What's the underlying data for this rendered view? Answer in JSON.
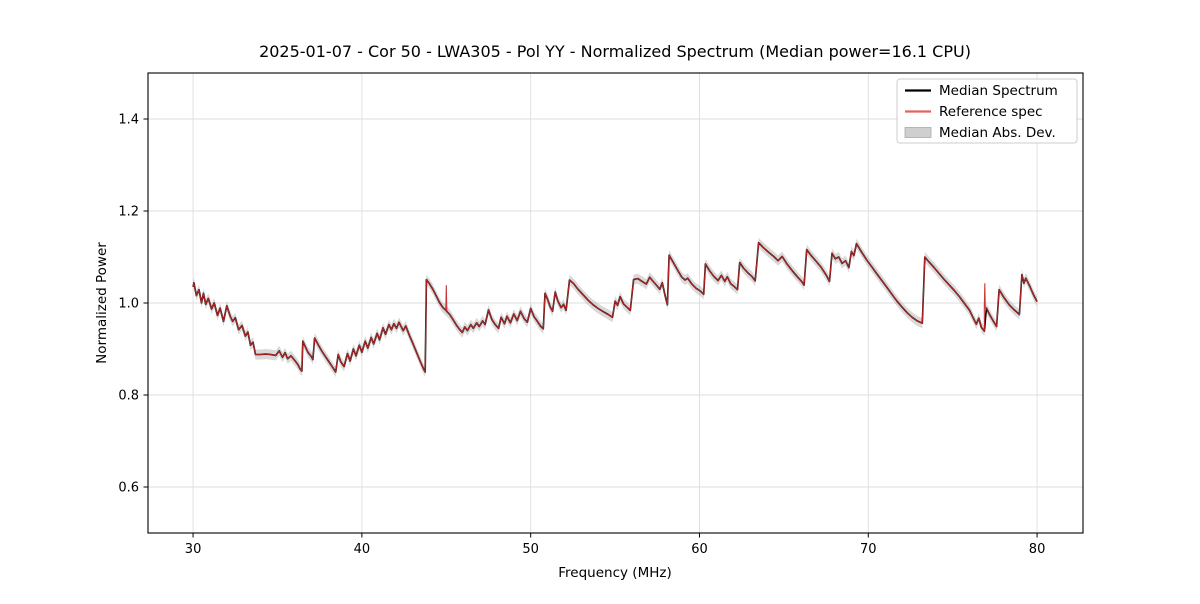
{
  "chart_data": {
    "type": "line",
    "title": "2025-01-07 - Cor 50 - LWA305 - Pol YY - Normalized Spectrum (Median power=16.1 CPU)",
    "xlabel": "Frequency (MHz)",
    "ylabel": "Normalized Power",
    "xlim": [
      27.33,
      82.72
    ],
    "ylim": [
      0.5,
      1.5
    ],
    "xticks": [
      30,
      40,
      50,
      60,
      70,
      80
    ],
    "xticklabels": [
      "30",
      "40",
      "50",
      "60",
      "70",
      "80"
    ],
    "yticks": [
      0.6,
      0.8,
      1.0,
      1.2,
      1.4
    ],
    "yticklabels": [
      "0.6",
      "0.8",
      "1.0",
      "1.2",
      "1.4"
    ],
    "grid": true,
    "colors": {
      "median_line": "#000000",
      "reference_line": "#c62828",
      "reference_legend": "#e86060",
      "mad_band": "#aaaaaa",
      "mad_band_opacity": 0.45,
      "grid_line": "#dedede",
      "frame": "#000000",
      "legend_border": "#cccccc"
    },
    "legend": {
      "position": "upper right",
      "entries": [
        {
          "label": "Median Spectrum",
          "type": "line",
          "color": "#000000"
        },
        {
          "label": "Reference spec",
          "type": "line",
          "color": "#e86060"
        },
        {
          "label": "Median Abs. Dev.",
          "type": "patch",
          "color": "#cfcfcf",
          "edge": "#aaaaaa"
        }
      ]
    },
    "series": [
      {
        "name": "Median Spectrum",
        "points": [
          [
            30.0,
            1.035
          ],
          [
            30.05,
            1.044
          ],
          [
            30.2,
            1.016
          ],
          [
            30.35,
            1.029
          ],
          [
            30.5,
            1.0
          ],
          [
            30.62,
            1.021
          ],
          [
            30.75,
            0.997
          ],
          [
            30.9,
            1.01
          ],
          [
            31.1,
            0.987
          ],
          [
            31.25,
            1.0
          ],
          [
            31.45,
            0.973
          ],
          [
            31.6,
            0.989
          ],
          [
            31.8,
            0.96
          ],
          [
            32.0,
            0.994
          ],
          [
            32.2,
            0.971
          ],
          [
            32.35,
            0.96
          ],
          [
            32.5,
            0.968
          ],
          [
            32.7,
            0.942
          ],
          [
            32.9,
            0.951
          ],
          [
            33.1,
            0.928
          ],
          [
            33.25,
            0.937
          ],
          [
            33.4,
            0.908
          ],
          [
            33.55,
            0.915
          ],
          [
            33.7,
            0.888
          ],
          [
            34.0,
            0.888
          ],
          [
            34.3,
            0.889
          ],
          [
            34.6,
            0.888
          ],
          [
            34.9,
            0.886
          ],
          [
            35.1,
            0.896
          ],
          [
            35.3,
            0.882
          ],
          [
            35.45,
            0.892
          ],
          [
            35.6,
            0.879
          ],
          [
            35.8,
            0.885
          ],
          [
            36.0,
            0.876
          ],
          [
            36.2,
            0.867
          ],
          [
            36.35,
            0.856
          ],
          [
            36.45,
            0.852
          ],
          [
            36.5,
            0.917
          ],
          [
            36.65,
            0.905
          ],
          [
            36.8,
            0.893
          ],
          [
            37.0,
            0.884
          ],
          [
            37.1,
            0.877
          ],
          [
            37.2,
            0.924
          ],
          [
            37.4,
            0.91
          ],
          [
            37.6,
            0.897
          ],
          [
            37.8,
            0.886
          ],
          [
            38.0,
            0.875
          ],
          [
            38.2,
            0.864
          ],
          [
            38.45,
            0.85
          ],
          [
            38.6,
            0.888
          ],
          [
            38.75,
            0.872
          ],
          [
            38.95,
            0.862
          ],
          [
            39.15,
            0.89
          ],
          [
            39.3,
            0.874
          ],
          [
            39.5,
            0.9
          ],
          [
            39.65,
            0.885
          ],
          [
            39.85,
            0.908
          ],
          [
            40.0,
            0.893
          ],
          [
            40.2,
            0.917
          ],
          [
            40.35,
            0.902
          ],
          [
            40.55,
            0.925
          ],
          [
            40.7,
            0.911
          ],
          [
            40.9,
            0.934
          ],
          [
            41.05,
            0.92
          ],
          [
            41.25,
            0.946
          ],
          [
            41.4,
            0.932
          ],
          [
            41.6,
            0.953
          ],
          [
            41.75,
            0.942
          ],
          [
            41.9,
            0.955
          ],
          [
            42.05,
            0.945
          ],
          [
            42.2,
            0.958
          ],
          [
            42.45,
            0.94
          ],
          [
            42.6,
            0.95
          ],
          [
            42.8,
            0.931
          ],
          [
            43.0,
            0.914
          ],
          [
            43.2,
            0.896
          ],
          [
            43.45,
            0.874
          ],
          [
            43.65,
            0.857
          ],
          [
            43.75,
            0.85
          ],
          [
            43.82,
            1.051
          ],
          [
            44.0,
            1.042
          ],
          [
            44.2,
            1.03
          ],
          [
            44.4,
            1.016
          ],
          [
            44.6,
            1.001
          ],
          [
            44.8,
            0.99
          ],
          [
            45.0,
            0.983
          ],
          [
            45.2,
            0.975
          ],
          [
            45.4,
            0.964
          ],
          [
            45.6,
            0.952
          ],
          [
            45.8,
            0.942
          ],
          [
            45.95,
            0.936
          ],
          [
            46.1,
            0.948
          ],
          [
            46.25,
            0.94
          ],
          [
            46.45,
            0.953
          ],
          [
            46.6,
            0.945
          ],
          [
            46.8,
            0.957
          ],
          [
            46.95,
            0.949
          ],
          [
            47.15,
            0.961
          ],
          [
            47.3,
            0.953
          ],
          [
            47.5,
            0.985
          ],
          [
            47.7,
            0.964
          ],
          [
            47.9,
            0.953
          ],
          [
            48.1,
            0.945
          ],
          [
            48.25,
            0.969
          ],
          [
            48.45,
            0.955
          ],
          [
            48.6,
            0.971
          ],
          [
            48.8,
            0.957
          ],
          [
            49.0,
            0.976
          ],
          [
            49.2,
            0.962
          ],
          [
            49.4,
            0.982
          ],
          [
            49.6,
            0.967
          ],
          [
            49.8,
            0.958
          ],
          [
            50.0,
            0.988
          ],
          [
            50.2,
            0.97
          ],
          [
            50.4,
            0.96
          ],
          [
            50.6,
            0.949
          ],
          [
            50.75,
            0.944
          ],
          [
            50.85,
            1.021
          ],
          [
            51.0,
            1.008
          ],
          [
            51.15,
            0.992
          ],
          [
            51.3,
            0.982
          ],
          [
            51.45,
            1.024
          ],
          [
            51.6,
            1.005
          ],
          [
            51.8,
            0.99
          ],
          [
            51.95,
            0.997
          ],
          [
            52.1,
            0.984
          ],
          [
            52.3,
            1.05
          ],
          [
            52.55,
            1.042
          ],
          [
            52.8,
            1.03
          ],
          [
            53.1,
            1.018
          ],
          [
            53.4,
            1.006
          ],
          [
            53.7,
            0.996
          ],
          [
            54.0,
            0.988
          ],
          [
            54.3,
            0.981
          ],
          [
            54.6,
            0.975
          ],
          [
            54.85,
            0.969
          ],
          [
            55.0,
            1.004
          ],
          [
            55.15,
            0.995
          ],
          [
            55.3,
            1.014
          ],
          [
            55.5,
            0.998
          ],
          [
            55.7,
            0.991
          ],
          [
            55.9,
            0.984
          ],
          [
            56.1,
            1.051
          ],
          [
            56.35,
            1.053
          ],
          [
            56.6,
            1.047
          ],
          [
            56.85,
            1.041
          ],
          [
            57.05,
            1.056
          ],
          [
            57.25,
            1.047
          ],
          [
            57.45,
            1.039
          ],
          [
            57.65,
            1.03
          ],
          [
            57.8,
            1.044
          ],
          [
            57.95,
            1.018
          ],
          [
            58.1,
            0.996
          ],
          [
            58.2,
            1.104
          ],
          [
            58.45,
            1.088
          ],
          [
            58.7,
            1.072
          ],
          [
            58.95,
            1.056
          ],
          [
            59.15,
            1.05
          ],
          [
            59.3,
            1.054
          ],
          [
            59.55,
            1.041
          ],
          [
            59.8,
            1.032
          ],
          [
            60.05,
            1.026
          ],
          [
            60.25,
            1.019
          ],
          [
            60.35,
            1.085
          ],
          [
            60.6,
            1.07
          ],
          [
            60.85,
            1.058
          ],
          [
            61.1,
            1.049
          ],
          [
            61.3,
            1.06
          ],
          [
            61.5,
            1.047
          ],
          [
            61.65,
            1.057
          ],
          [
            61.85,
            1.042
          ],
          [
            62.05,
            1.036
          ],
          [
            62.25,
            1.029
          ],
          [
            62.38,
            1.088
          ],
          [
            62.6,
            1.076
          ],
          [
            62.85,
            1.066
          ],
          [
            63.1,
            1.058
          ],
          [
            63.3,
            1.048
          ],
          [
            63.5,
            1.131
          ],
          [
            63.8,
            1.12
          ],
          [
            64.1,
            1.11
          ],
          [
            64.4,
            1.101
          ],
          [
            64.65,
            1.092
          ],
          [
            64.9,
            1.101
          ],
          [
            65.2,
            1.084
          ],
          [
            65.5,
            1.07
          ],
          [
            65.8,
            1.057
          ],
          [
            66.05,
            1.047
          ],
          [
            66.2,
            1.039
          ],
          [
            66.35,
            1.116
          ],
          [
            66.6,
            1.104
          ],
          [
            66.9,
            1.091
          ],
          [
            67.2,
            1.078
          ],
          [
            67.5,
            1.061
          ],
          [
            67.7,
            1.047
          ],
          [
            67.85,
            1.108
          ],
          [
            68.05,
            1.096
          ],
          [
            68.25,
            1.1
          ],
          [
            68.45,
            1.086
          ],
          [
            68.65,
            1.092
          ],
          [
            68.85,
            1.077
          ],
          [
            69.0,
            1.112
          ],
          [
            69.15,
            1.103
          ],
          [
            69.3,
            1.129
          ],
          [
            69.6,
            1.111
          ],
          [
            69.9,
            1.094
          ],
          [
            70.2,
            1.079
          ],
          [
            70.5,
            1.064
          ],
          [
            70.8,
            1.049
          ],
          [
            71.1,
            1.034
          ],
          [
            71.4,
            1.019
          ],
          [
            71.7,
            1.004
          ],
          [
            72.0,
            0.991
          ],
          [
            72.3,
            0.979
          ],
          [
            72.6,
            0.969
          ],
          [
            72.9,
            0.961
          ],
          [
            73.2,
            0.956
          ],
          [
            73.35,
            1.1
          ],
          [
            73.6,
            1.089
          ],
          [
            73.9,
            1.077
          ],
          [
            74.2,
            1.064
          ],
          [
            74.5,
            1.051
          ],
          [
            74.8,
            1.039
          ],
          [
            75.1,
            1.027
          ],
          [
            75.4,
            1.014
          ],
          [
            75.7,
            0.999
          ],
          [
            76.0,
            0.984
          ],
          [
            76.2,
            0.969
          ],
          [
            76.4,
            0.954
          ],
          [
            76.55,
            0.967
          ],
          [
            76.7,
            0.947
          ],
          [
            76.88,
            0.939
          ],
          [
            77.0,
            0.989
          ],
          [
            77.2,
            0.974
          ],
          [
            77.4,
            0.961
          ],
          [
            77.6,
            0.949
          ],
          [
            77.75,
            1.029
          ],
          [
            78.05,
            1.011
          ],
          [
            78.35,
            0.996
          ],
          [
            78.65,
            0.985
          ],
          [
            78.95,
            0.975
          ],
          [
            79.1,
            1.062
          ],
          [
            79.22,
            1.043
          ],
          [
            79.33,
            1.054
          ],
          [
            79.6,
            1.034
          ],
          [
            79.8,
            1.017
          ],
          [
            80.0,
            1.003
          ]
        ]
      },
      {
        "name": "Reference spec",
        "same_as_median": true,
        "spikes": [
          {
            "freq": 45.0,
            "peak": 1.038
          },
          {
            "freq": 76.9,
            "peak": 1.042
          }
        ]
      },
      {
        "name": "Median Abs. Dev.",
        "band_halfwidth": 0.011
      }
    ]
  }
}
